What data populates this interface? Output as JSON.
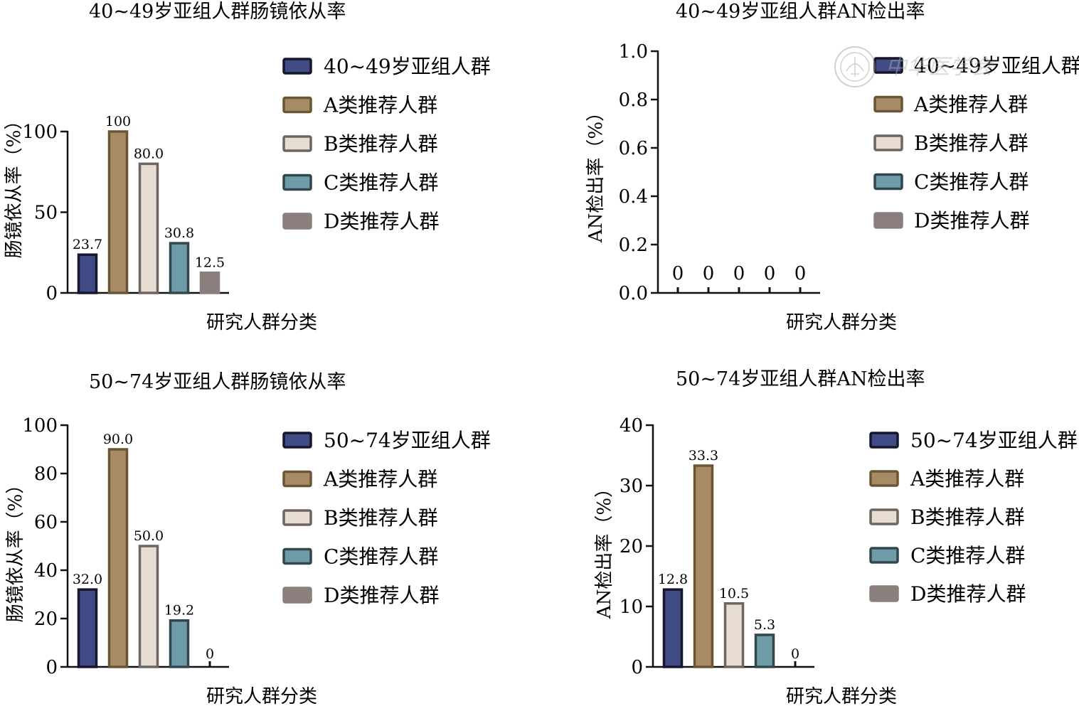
{
  "chart_data": [
    {
      "type": "bar",
      "title": "40~49岁亚组人群肠镜依从率",
      "xlabel": "研究人群分类",
      "ylabel": "肠镜依从率（%）",
      "ylim": [
        0,
        100
      ],
      "yticks": [
        "0",
        "50",
        "100"
      ],
      "categories": [
        "40~49岁亚组人群",
        "A类推荐人群",
        "B类推荐人群",
        "C类推荐人群",
        "D类推荐人群"
      ],
      "values": [
        23.7,
        100,
        80.0,
        30.8,
        12.5
      ],
      "value_labels": [
        "23.7",
        "100",
        "80.0",
        "30.8",
        "12.5"
      ],
      "legend": [
        "40~49岁亚组人群",
        "A类推荐人群",
        "B类推荐人群",
        "C类推荐人群",
        "D类推荐人群"
      ],
      "legend_position": "right",
      "grid": false
    },
    {
      "type": "bar",
      "title": "40~49岁亚组人群AN检出率",
      "xlabel": "研究人群分类",
      "ylabel": "AN检出率（%）",
      "ylim": [
        0,
        1.0
      ],
      "yticks": [
        "0.0",
        "0.2",
        "0.4",
        "0.6",
        "0.8",
        "1.0"
      ],
      "categories": [
        "40~49岁亚组人群",
        "A类推荐人群",
        "B类推荐人群",
        "C类推荐人群",
        "D类推荐人群"
      ],
      "values": [
        0,
        0,
        0,
        0,
        0
      ],
      "value_labels": [
        "0",
        "0",
        "0",
        "0",
        "0"
      ],
      "legend": [
        "40~49岁亚组人群",
        "A类推荐人群",
        "B类推荐人群",
        "C类推荐人群",
        "D类推荐人群"
      ],
      "legend_position": "right",
      "grid": false
    },
    {
      "type": "bar",
      "title": "50~74岁亚组人群肠镜依从率",
      "xlabel": "研究人群分类",
      "ylabel": "肠镜依从率（%）",
      "ylim": [
        0,
        100
      ],
      "yticks": [
        "0",
        "20",
        "40",
        "60",
        "80",
        "100"
      ],
      "categories": [
        "50~74岁亚组人群",
        "A类推荐人群",
        "B类推荐人群",
        "C类推荐人群",
        "D类推荐人群"
      ],
      "values": [
        32.0,
        90.0,
        50.0,
        19.2,
        0
      ],
      "value_labels": [
        "32.0",
        "90.0",
        "50.0",
        "19.2",
        "0"
      ],
      "legend": [
        "50~74岁亚组人群",
        "A类推荐人群",
        "B类推荐人群",
        "C类推荐人群",
        "D类推荐人群"
      ],
      "legend_position": "right",
      "grid": false
    },
    {
      "type": "bar",
      "title": "50~74岁亚组人群AN检出率",
      "xlabel": "研究人群分类",
      "ylabel": "AN检出率（%）",
      "ylim": [
        0,
        40
      ],
      "yticks": [
        "0",
        "10",
        "20",
        "30",
        "40"
      ],
      "categories": [
        "50~74岁亚组人群",
        "A类推荐人群",
        "B类推荐人群",
        "C类推荐人群",
        "D类推荐人群"
      ],
      "values": [
        12.8,
        33.3,
        10.5,
        5.3,
        0
      ],
      "value_labels": [
        "12.8",
        "33.3",
        "10.5",
        "5.3",
        "0"
      ],
      "legend": [
        "50~74岁亚组人群",
        "A类推荐人群",
        "B类推荐人群",
        "C类推荐人群",
        "D类推荐人群"
      ],
      "legend_position": "right",
      "grid": false
    }
  ],
  "series_colors": {
    "fill": [
      "#414c86",
      "#a78b67",
      "#e7dcd1",
      "#6d9ba8",
      "#8a7f7d"
    ],
    "stroke": [
      "#16162c",
      "#6b5634",
      "#6f6560",
      "#33464d",
      "#8a7f7d"
    ]
  },
  "watermark": {
    "text": "中华医学会",
    "icon": "seal-emblem-icon"
  }
}
